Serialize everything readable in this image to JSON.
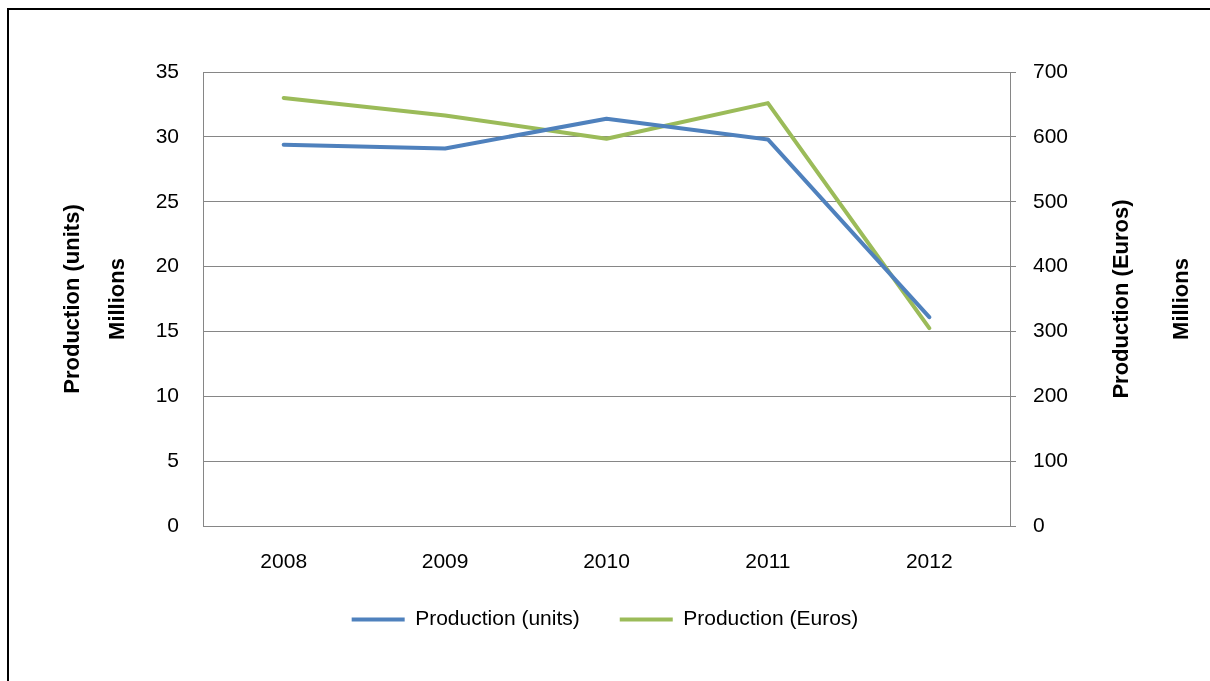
{
  "chart_data": {
    "type": "line",
    "categories": [
      "2008",
      "2009",
      "2010",
      "2011",
      "2012"
    ],
    "series": [
      {
        "name": "Production (units)",
        "color": "#4f81bd",
        "values": [
          29.4,
          29.1,
          31.4,
          29.8,
          16.1
        ]
      },
      {
        "name": "Production (Euros)",
        "color": "#9bbb59",
        "values": [
          660,
          633,
          597,
          652,
          305
        ],
        "axis": "y2"
      }
    ],
    "ylabel": "Production (units)\nMillions",
    "y2label": "Production (Euros)\nMillions",
    "ylim": [
      0,
      35
    ],
    "yticks": [
      0,
      5,
      10,
      15,
      20,
      25,
      30,
      35
    ],
    "y2lim": [
      0,
      700
    ],
    "y2ticks": [
      0,
      100,
      200,
      300,
      400,
      500,
      600,
      700
    ],
    "grid": "y",
    "legend": "bottom",
    "marker": "none",
    "line_style": "solid"
  }
}
